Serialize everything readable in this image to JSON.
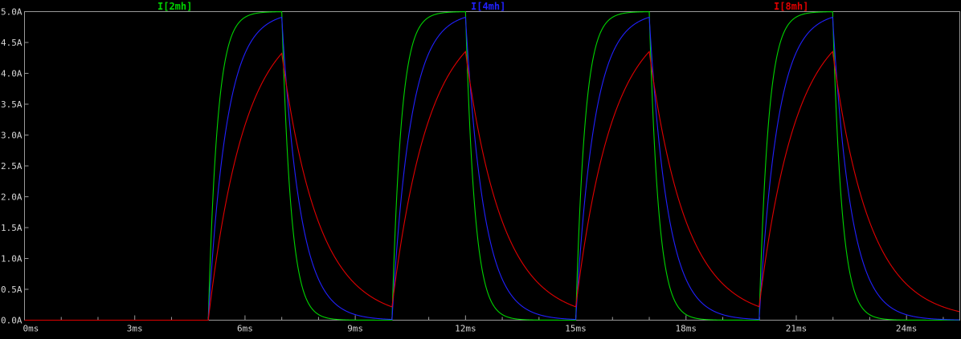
{
  "chart_data": {
    "type": "line",
    "title": "",
    "legend_position": "top",
    "x_axis": {
      "unit": "ms",
      "min": 0,
      "max": 25.45,
      "minor_tick_interval_ms": 1,
      "major_tick_interval_ms": 3,
      "tick_labels": [
        "0ms",
        "3ms",
        "6ms",
        "9ms",
        "12ms",
        "15ms",
        "18ms",
        "21ms",
        "24ms"
      ]
    },
    "y_axis": {
      "unit": "A",
      "min": 0,
      "max": 5,
      "tick_interval": 0.5,
      "tick_labels": [
        "0.0A",
        "0.5A",
        "1.0A",
        "1.5A",
        "2.0A",
        "2.5A",
        "3.0A",
        "3.5A",
        "4.0A",
        "4.5A",
        "5.0A"
      ]
    },
    "series": [
      {
        "label": "I[2mh]",
        "color": "#00d400",
        "inductance_mH": 2,
        "tau_ms": 0.25,
        "steady_state_A": 5.0,
        "observed_peak_A": 5.0
      },
      {
        "label": "I[4mh]",
        "color": "#2121ff",
        "inductance_mH": 4,
        "tau_ms": 0.5,
        "steady_state_A": 5.0,
        "observed_peak_A": 4.9
      },
      {
        "label": "I[8mh]",
        "color": "#e10000",
        "inductance_mH": 8,
        "tau_ms": 1.0,
        "steady_state_A": 5.0,
        "observed_peak_A": 4.35
      }
    ],
    "stimulus_pulses_ms": [
      [
        5,
        7
      ],
      [
        10,
        12
      ],
      [
        15,
        17
      ],
      [
        20,
        22
      ]
    ],
    "waveform_description": "RL charge/discharge current pulses, rise at pulse start toward 5A, exponential decay after pulse end, period 5ms, pulse width 2ms, first pulse at 5ms"
  },
  "colors": {
    "background": "#000000",
    "axis": "#9a9a9a",
    "tick_label": "#d6d6d6"
  }
}
